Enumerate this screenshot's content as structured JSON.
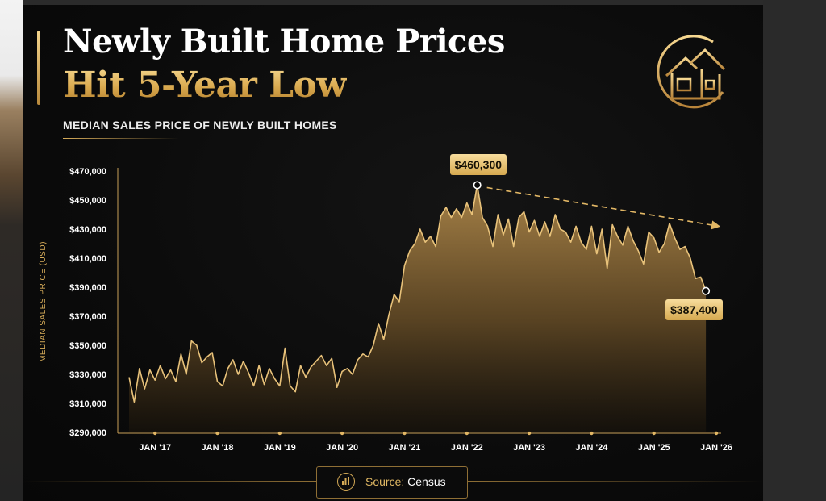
{
  "header": {
    "title_line1": "Newly Built Home Prices",
    "title_line2": "Hit 5-Year Low",
    "subtitle": "MEDIAN SALES PRICE OF NEWLY BUILT HOMES"
  },
  "logo_icon": "house-circle-icon",
  "source": {
    "label": "Source:",
    "value": "Census",
    "icon": "bar-chart-icon"
  },
  "colors": {
    "gold": "#e2b765",
    "gold_light": "#f7dc9c",
    "background": "#0b0b0b"
  },
  "chart_data": {
    "type": "area",
    "ylabel": "MEDIAN SALES PRICE (USD)",
    "xlabel": "",
    "ylim": [
      290000,
      470000
    ],
    "yticks": [
      290000,
      310000,
      330000,
      350000,
      370000,
      390000,
      410000,
      430000,
      450000,
      470000
    ],
    "ytick_labels": [
      "$290,000",
      "$310,000",
      "$330,000",
      "$350,000",
      "$370,000",
      "$390,000",
      "$410,000",
      "$430,000",
      "$450,000",
      "$470,000"
    ],
    "xlim": [
      "2016-08",
      "2026-01"
    ],
    "xticks": [
      "2017-01",
      "2018-01",
      "2019-01",
      "2020-01",
      "2021-01",
      "2022-01",
      "2023-01",
      "2024-01",
      "2025-01",
      "2026-01"
    ],
    "xtick_labels": [
      "JAN '17",
      "JAN '18",
      "JAN '19",
      "JAN '20",
      "JAN '21",
      "JAN '22",
      "JAN '23",
      "JAN '24",
      "JAN '25",
      "JAN '26"
    ],
    "series": [
      {
        "values": [
          {
            "x": "2016-08",
            "y": 328000
          },
          {
            "x": "2016-09",
            "y": 311000
          },
          {
            "x": "2016-10",
            "y": 334000
          },
          {
            "x": "2016-11",
            "y": 320000
          },
          {
            "x": "2016-12",
            "y": 333000
          },
          {
            "x": "2017-01",
            "y": 326000
          },
          {
            "x": "2017-02",
            "y": 336000
          },
          {
            "x": "2017-03",
            "y": 327000
          },
          {
            "x": "2017-04",
            "y": 333000
          },
          {
            "x": "2017-05",
            "y": 325000
          },
          {
            "x": "2017-06",
            "y": 344000
          },
          {
            "x": "2017-07",
            "y": 330000
          },
          {
            "x": "2017-08",
            "y": 353000
          },
          {
            "x": "2017-09",
            "y": 350000
          },
          {
            "x": "2017-10",
            "y": 338000
          },
          {
            "x": "2017-11",
            "y": 342000
          },
          {
            "x": "2017-12",
            "y": 345000
          },
          {
            "x": "2018-01",
            "y": 325000
          },
          {
            "x": "2018-02",
            "y": 322000
          },
          {
            "x": "2018-03",
            "y": 334000
          },
          {
            "x": "2018-04",
            "y": 340000
          },
          {
            "x": "2018-05",
            "y": 330000
          },
          {
            "x": "2018-06",
            "y": 339000
          },
          {
            "x": "2018-07",
            "y": 331000
          },
          {
            "x": "2018-08",
            "y": 322000
          },
          {
            "x": "2018-09",
            "y": 336000
          },
          {
            "x": "2018-10",
            "y": 323000
          },
          {
            "x": "2018-11",
            "y": 334000
          },
          {
            "x": "2018-12",
            "y": 327000
          },
          {
            "x": "2019-01",
            "y": 322000
          },
          {
            "x": "2019-02",
            "y": 348000
          },
          {
            "x": "2019-03",
            "y": 322000
          },
          {
            "x": "2019-04",
            "y": 318000
          },
          {
            "x": "2019-05",
            "y": 336000
          },
          {
            "x": "2019-06",
            "y": 328000
          },
          {
            "x": "2019-07",
            "y": 335000
          },
          {
            "x": "2019-08",
            "y": 339000
          },
          {
            "x": "2019-09",
            "y": 343000
          },
          {
            "x": "2019-10",
            "y": 336000
          },
          {
            "x": "2019-11",
            "y": 341000
          },
          {
            "x": "2019-12",
            "y": 321000
          },
          {
            "x": "2020-01",
            "y": 332000
          },
          {
            "x": "2020-02",
            "y": 334000
          },
          {
            "x": "2020-03",
            "y": 330000
          },
          {
            "x": "2020-04",
            "y": 340000
          },
          {
            "x": "2020-05",
            "y": 344000
          },
          {
            "x": "2020-06",
            "y": 342000
          },
          {
            "x": "2020-07",
            "y": 350000
          },
          {
            "x": "2020-08",
            "y": 365000
          },
          {
            "x": "2020-09",
            "y": 354000
          },
          {
            "x": "2020-10",
            "y": 371000
          },
          {
            "x": "2020-11",
            "y": 385000
          },
          {
            "x": "2020-12",
            "y": 380000
          },
          {
            "x": "2021-01",
            "y": 405000
          },
          {
            "x": "2021-02",
            "y": 415000
          },
          {
            "x": "2021-03",
            "y": 420000
          },
          {
            "x": "2021-04",
            "y": 430000
          },
          {
            "x": "2021-05",
            "y": 421000
          },
          {
            "x": "2021-06",
            "y": 425000
          },
          {
            "x": "2021-07",
            "y": 418000
          },
          {
            "x": "2021-08",
            "y": 439000
          },
          {
            "x": "2021-09",
            "y": 445000
          },
          {
            "x": "2021-10",
            "y": 438000
          },
          {
            "x": "2021-11",
            "y": 444000
          },
          {
            "x": "2021-12",
            "y": 438000
          },
          {
            "x": "2022-01",
            "y": 448000
          },
          {
            "x": "2022-02",
            "y": 440000
          },
          {
            "x": "2022-03",
            "y": 460300
          },
          {
            "x": "2022-04",
            "y": 438000
          },
          {
            "x": "2022-05",
            "y": 432000
          },
          {
            "x": "2022-06",
            "y": 418000
          },
          {
            "x": "2022-07",
            "y": 440000
          },
          {
            "x": "2022-08",
            "y": 426000
          },
          {
            "x": "2022-09",
            "y": 437000
          },
          {
            "x": "2022-10",
            "y": 418000
          },
          {
            "x": "2022-11",
            "y": 438000
          },
          {
            "x": "2022-12",
            "y": 442000
          },
          {
            "x": "2023-01",
            "y": 428000
          },
          {
            "x": "2023-02",
            "y": 436000
          },
          {
            "x": "2023-03",
            "y": 425000
          },
          {
            "x": "2023-04",
            "y": 435000
          },
          {
            "x": "2023-05",
            "y": 425000
          },
          {
            "x": "2023-06",
            "y": 440000
          },
          {
            "x": "2023-07",
            "y": 430000
          },
          {
            "x": "2023-08",
            "y": 428000
          },
          {
            "x": "2023-09",
            "y": 421000
          },
          {
            "x": "2023-10",
            "y": 432000
          },
          {
            "x": "2023-11",
            "y": 421000
          },
          {
            "x": "2023-12",
            "y": 416000
          },
          {
            "x": "2024-01",
            "y": 432000
          },
          {
            "x": "2024-02",
            "y": 413000
          },
          {
            "x": "2024-03",
            "y": 430000
          },
          {
            "x": "2024-04",
            "y": 403000
          },
          {
            "x": "2024-05",
            "y": 433000
          },
          {
            "x": "2024-06",
            "y": 425000
          },
          {
            "x": "2024-07",
            "y": 419000
          },
          {
            "x": "2024-08",
            "y": 432000
          },
          {
            "x": "2024-09",
            "y": 422000
          },
          {
            "x": "2024-10",
            "y": 415000
          },
          {
            "x": "2024-11",
            "y": 406000
          },
          {
            "x": "2024-12",
            "y": 428000
          },
          {
            "x": "2025-01",
            "y": 424000
          },
          {
            "x": "2025-02",
            "y": 414000
          },
          {
            "x": "2025-03",
            "y": 420000
          },
          {
            "x": "2025-04",
            "y": 434000
          },
          {
            "x": "2025-05",
            "y": 424000
          },
          {
            "x": "2025-06",
            "y": 416000
          },
          {
            "x": "2025-07",
            "y": 418000
          },
          {
            "x": "2025-08",
            "y": 410000
          },
          {
            "x": "2025-09",
            "y": 396000
          },
          {
            "x": "2025-10",
            "y": 397000
          },
          {
            "x": "2025-11",
            "y": 387400
          }
        ]
      }
    ],
    "annotations": [
      {
        "label": "$460,300",
        "x": "2022-03",
        "y": 460300,
        "kind": "peak"
      },
      {
        "label": "$387,400",
        "x": "2025-11",
        "y": 387400,
        "kind": "latest"
      }
    ],
    "trend_arrow": {
      "from": {
        "x": "2022-03",
        "y": 460300
      },
      "to": {
        "x": "2026-01",
        "y": 432000
      }
    },
    "grid": false,
    "legend": "none"
  }
}
